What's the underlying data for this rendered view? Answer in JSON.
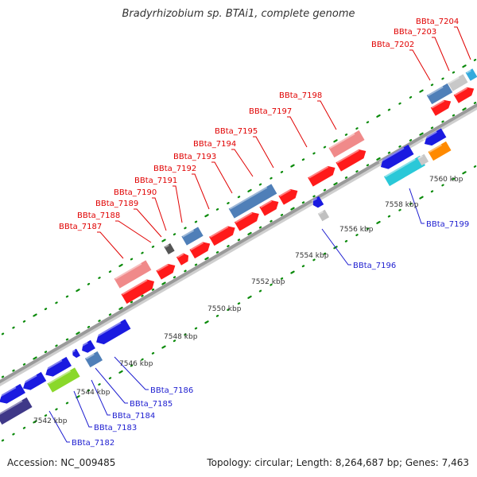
{
  "title": "Bradyrhizobium sp. BTAi1, complete genome",
  "footer": {
    "accession": "Accession: NC_009485",
    "summary": "Topology: circular; Length: 8,264,687 bp; Genes: 7,463"
  },
  "colors": {
    "forward_strand": "#ff0000",
    "reverse_strand": "#1010e0",
    "backbone": "#9a9a9a",
    "tick": "#0a8a0a",
    "top_labels": "#e00000",
    "bottom_labels": "#1d1dd0"
  },
  "top_labels": [
    "BBta_7187",
    "BBta_7188",
    "BBta_7189",
    "BBta_7190",
    "BBta_7191",
    "BBta_7192",
    "BBta_7193",
    "BBta_7194",
    "BBta_7195",
    "BBta_7197",
    "BBta_7198",
    "BBta_7202",
    "BBta_7203",
    "BBta_7204"
  ],
  "bottom_labels": [
    "BBta_7182",
    "BBta_7183",
    "BBta_7184",
    "BBta_7185",
    "BBta_7186",
    "BBta_7196",
    "BBta_7199"
  ],
  "tick_labels": [
    "7542 kbp",
    "7544 kbp",
    "7546 kbp",
    "7548 kbp",
    "7550 kbp",
    "7552 kbp",
    "7554 kbp",
    "7556 kbp",
    "7558 kbp",
    "7560 kbp"
  ]
}
